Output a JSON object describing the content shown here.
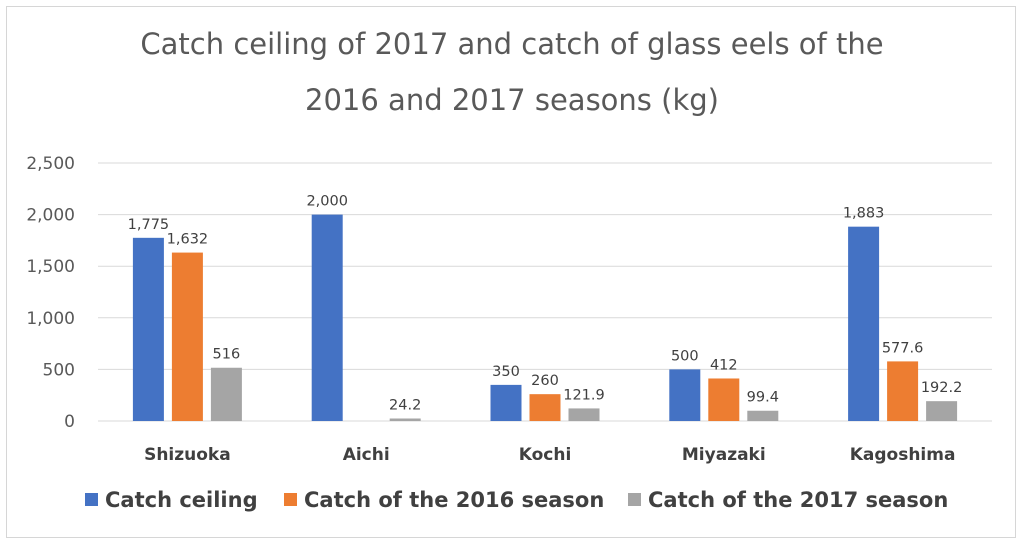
{
  "chart_data": {
    "type": "bar",
    "title_lines": [
      "Catch ceiling of 2017 and catch of glass eels of the",
      "2016 and 2017 seasons (kg)"
    ],
    "categories": [
      "Shizuoka",
      "Aichi",
      "Kochi",
      "Miyazaki",
      "Kagoshima"
    ],
    "series": [
      {
        "name": "Catch ceiling",
        "color": "#4472c4",
        "values": [
          1775,
          2000,
          350,
          500,
          1883
        ],
        "labels": [
          "1,775",
          "2,000",
          "350",
          "500",
          "1,883"
        ]
      },
      {
        "name": "Catch of the 2016 season",
        "color": "#ed7d31",
        "values": [
          1632,
          null,
          260,
          412,
          577.6
        ],
        "labels": [
          "1,632",
          "",
          "260",
          "412",
          "577.6"
        ]
      },
      {
        "name": "Catch of the 2017 season",
        "color": "#a5a5a5",
        "values": [
          516,
          24.2,
          121.9,
          99.4,
          192.2
        ],
        "labels": [
          "516",
          "24.2",
          "121.9",
          "99.4",
          "192.2"
        ]
      }
    ],
    "ylim": [
      0,
      2500
    ],
    "yticks": [
      0,
      500,
      1000,
      1500,
      2000,
      2500
    ],
    "ytick_labels": [
      "0",
      "500",
      "1,000",
      "1,500",
      "2,000",
      "2,500"
    ],
    "grid": true,
    "legend_position": "bottom"
  }
}
